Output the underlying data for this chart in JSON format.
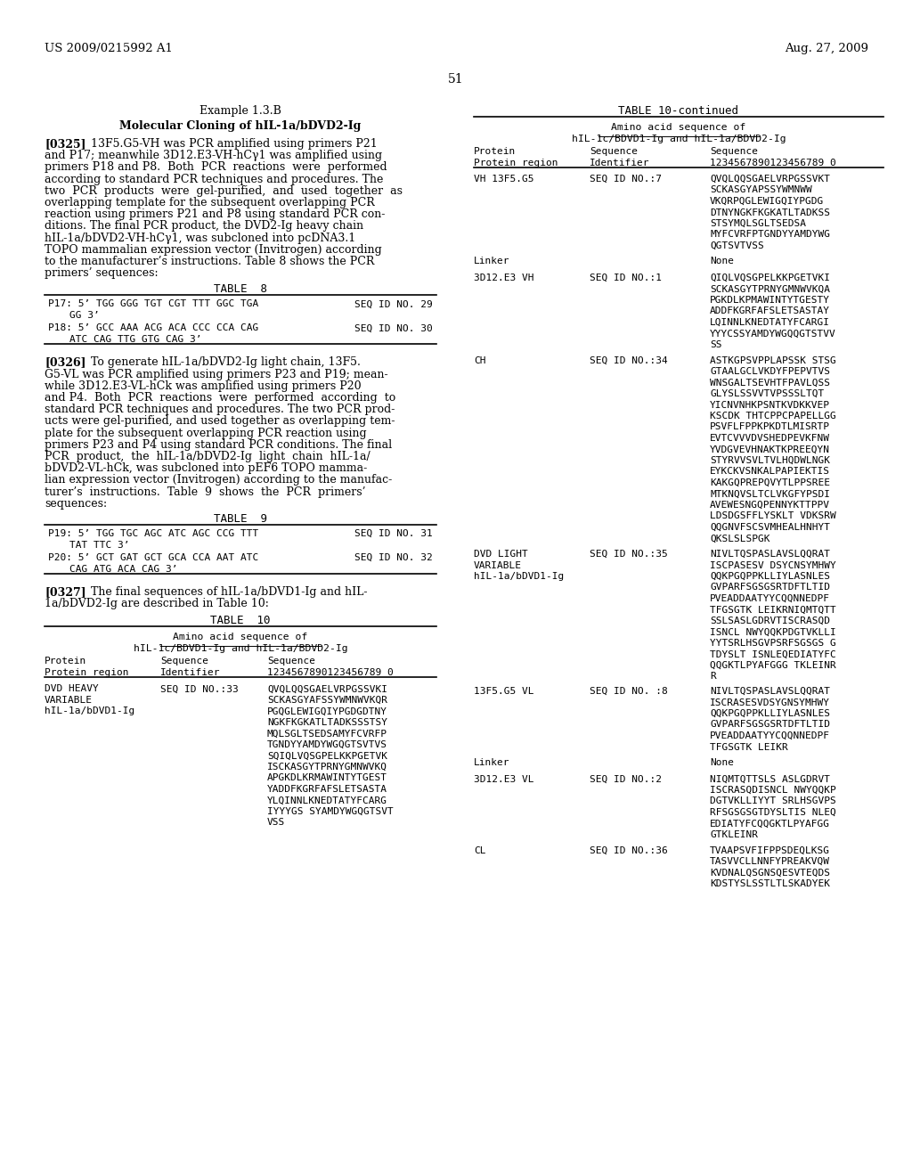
{
  "bg_color": "#ffffff",
  "header_left": "US 2009/0215992 A1",
  "header_right": "Aug. 27, 2009",
  "page_number": "51"
}
